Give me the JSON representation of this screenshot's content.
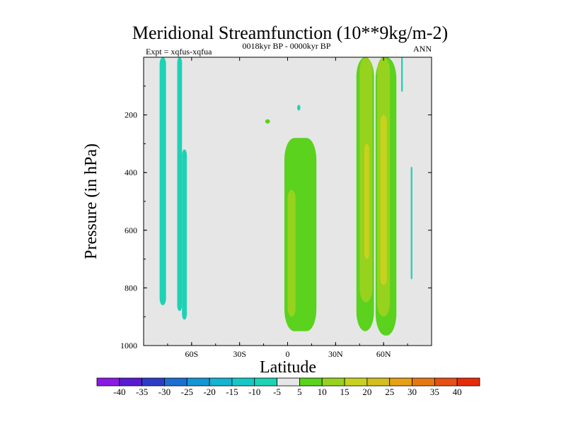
{
  "chart_data": {
    "type": "contour",
    "title": "Meridional Streamfunction (10**9kg/m-2)",
    "subtitle": "0018kyr BP - 0000kyr BP",
    "left_label": "Expt = xqfus-xqfua",
    "right_label": "ANN",
    "xlabel": "Latitude",
    "ylabel": "Pressure (in hPa)",
    "xlim": [
      -90,
      90
    ],
    "ylim": [
      1000,
      0
    ],
    "x_ticks": [
      {
        "value": -60,
        "label": "60S"
      },
      {
        "value": -30,
        "label": "30S"
      },
      {
        "value": 0,
        "label": "0"
      },
      {
        "value": 30,
        "label": "30N"
      },
      {
        "value": 60,
        "label": "60N"
      }
    ],
    "y_ticks": [
      {
        "value": 200,
        "label": "200"
      },
      {
        "value": 400,
        "label": "400"
      },
      {
        "value": 600,
        "label": "600"
      },
      {
        "value": 800,
        "label": "800"
      },
      {
        "value": 1000,
        "label": "1000"
      }
    ],
    "background_color": "#e6e6e6",
    "colorbar": {
      "colors": [
        "#8c1ae6",
        "#5a1ad2",
        "#2d3cc8",
        "#1e6ed2",
        "#1496d2",
        "#14b4d2",
        "#14c8c8",
        "#1ed2b4",
        "#e6e6e6",
        "#5ad21e",
        "#96d21e",
        "#c8d21e",
        "#d2be1e",
        "#e6a014",
        "#e67814",
        "#e65014",
        "#e62d0a"
      ],
      "labels": [
        "-40",
        "-35",
        "-30",
        "-25",
        "-20",
        "-15",
        "-10",
        "-5",
        "5",
        "10",
        "15",
        "20",
        "25",
        "30",
        "35",
        "40"
      ]
    },
    "regions": [
      {
        "level": "-10 to -5",
        "color": "#1ed2b4",
        "lat_range": [
          -80,
          -76
        ],
        "p_range": [
          0,
          860
        ],
        "note": "southern high-latitude cell"
      },
      {
        "level": "-10 to -5",
        "color": "#1ed2b4",
        "lat_range": [
          -69,
          -66
        ],
        "p_range": [
          0,
          880
        ]
      },
      {
        "level": "-10 to -5",
        "color": "#1ed2b4",
        "lat_range": [
          -66,
          -63
        ],
        "p_range": [
          320,
          910
        ]
      },
      {
        "level": "-10 to -5",
        "color": "#1ed2b4",
        "lat_range": [
          6,
          8
        ],
        "p_range": [
          165,
          185
        ]
      },
      {
        "level": "-10 to -5",
        "color": "#1ed2b4",
        "lat_range": [
          71,
          72
        ],
        "p_range": [
          0,
          120
        ]
      },
      {
        "level": "-10 to -5",
        "color": "#1ed2b4",
        "lat_range": [
          77,
          78
        ],
        "p_range": [
          380,
          770
        ]
      },
      {
        "level": "5 to 10",
        "color": "#5ad21e",
        "lat_range": [
          -14,
          -11
        ],
        "p_range": [
          215,
          230
        ]
      },
      {
        "level": "5 to 10",
        "color": "#5ad21e",
        "lat_range": [
          -2,
          18
        ],
        "p_range": [
          280,
          950
        ],
        "note": "equatorial cell"
      },
      {
        "level": "10 to 15",
        "color": "#96d21e",
        "lat_range": [
          0,
          5
        ],
        "p_range": [
          460,
          900
        ]
      },
      {
        "level": "5 to 10",
        "color": "#5ad21e",
        "lat_range": [
          43,
          54
        ],
        "p_range": [
          0,
          950
        ]
      },
      {
        "level": "10 to 15",
        "color": "#96d21e",
        "lat_range": [
          45,
          53
        ],
        "p_range": [
          0,
          850
        ]
      },
      {
        "level": "15 to 20",
        "color": "#c8d21e",
        "lat_range": [
          48,
          51
        ],
        "p_range": [
          300,
          700
        ]
      },
      {
        "level": "5 to 10",
        "color": "#5ad21e",
        "lat_range": [
          55,
          68
        ],
        "p_range": [
          0,
          965
        ]
      },
      {
        "level": "10 to 15",
        "color": "#96d21e",
        "lat_range": [
          56,
          64
        ],
        "p_range": [
          0,
          900
        ]
      },
      {
        "level": "15 to 20",
        "color": "#c8d21e",
        "lat_range": [
          58,
          62
        ],
        "p_range": [
          200,
          790
        ]
      }
    ]
  }
}
